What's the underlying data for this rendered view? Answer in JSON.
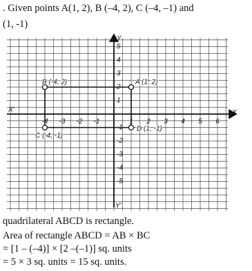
{
  "intro": [
    ". Given points A(1, 2), B (–4, 2), C (–4, –1) and",
    "(1, -1)"
  ],
  "graph": {
    "x_axis_label": "X",
    "x_axis_label_neg": "X'",
    "y_axis_label": "Y",
    "y_axis_label_neg": "Y'",
    "x_ticks": [
      {
        "value": -4,
        "label": "-4"
      },
      {
        "value": -3,
        "label": "-3"
      },
      {
        "value": -2,
        "label": "-2"
      },
      {
        "value": -1,
        "label": "-1"
      },
      1,
      2,
      3,
      4,
      5,
      6
    ],
    "y_ticks": [
      5,
      4,
      3,
      2,
      1,
      {
        "value": -1,
        "label": "-1"
      },
      {
        "value": -2,
        "label": "-2"
      },
      {
        "value": -3,
        "label": "-3"
      },
      {
        "value": -4,
        "label": "-4"
      },
      {
        "value": -5,
        "label": "-5"
      }
    ],
    "points": [
      {
        "label": "A (1, 2)",
        "x": 1,
        "y": 2
      },
      {
        "label": "B (-4, 2)",
        "x": -4,
        "y": 2
      },
      {
        "label": "C (-4, -1)",
        "x": -4,
        "y": -1
      },
      {
        "label": "D (1, -1)",
        "x": 1,
        "y": -1
      }
    ]
  },
  "conclusion": [
    "quadrilateral ABCD is rectangle.",
    "Area of rectangle ABCD = AB × BC",
    "= [1 – (–4)] × [2 –(–1)] sq. units",
    "= 5 × 3 sq. units = 15 sq. units."
  ]
}
